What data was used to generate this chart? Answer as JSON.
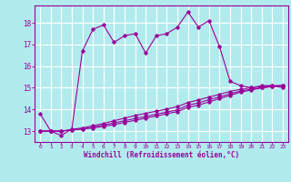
{
  "xlabel": "Windchill (Refroidissement éolien,°C)",
  "ylabel": "",
  "bg_color": "#b2ebee",
  "grid_color": "#ffffff",
  "line_color": "#990099",
  "xlim": [
    -0.5,
    23.5
  ],
  "ylim": [
    12.5,
    18.8
  ],
  "yticks": [
    13,
    14,
    15,
    16,
    17,
    18
  ],
  "xticks": [
    0,
    1,
    2,
    3,
    4,
    5,
    6,
    7,
    8,
    9,
    10,
    11,
    12,
    13,
    14,
    15,
    16,
    17,
    18,
    19,
    20,
    21,
    22,
    23
  ],
  "line1_x": [
    0,
    1,
    2,
    3,
    4,
    5,
    6,
    7,
    8,
    9,
    10,
    11,
    12,
    13,
    14,
    15,
    16,
    17,
    18,
    19,
    20,
    21,
    22,
    23
  ],
  "line1_y": [
    13.8,
    13.0,
    12.8,
    13.1,
    16.7,
    17.7,
    17.9,
    17.1,
    17.4,
    17.5,
    16.6,
    17.4,
    17.5,
    17.8,
    18.5,
    17.8,
    18.1,
    16.9,
    15.3,
    15.1,
    15.0,
    15.1,
    15.1,
    15.0
  ],
  "line2_x": [
    0,
    1,
    2,
    3,
    4,
    5,
    6,
    7,
    8,
    9,
    10,
    11,
    12,
    13,
    14,
    15,
    16,
    17,
    18,
    19,
    20,
    21,
    22,
    23
  ],
  "line2_y": [
    13.0,
    13.0,
    13.0,
    13.05,
    13.1,
    13.15,
    13.22,
    13.3,
    13.4,
    13.5,
    13.6,
    13.7,
    13.8,
    13.9,
    14.1,
    14.2,
    14.35,
    14.5,
    14.65,
    14.8,
    14.9,
    15.0,
    15.05,
    15.1
  ],
  "line3_x": [
    0,
    1,
    2,
    3,
    4,
    5,
    6,
    7,
    8,
    9,
    10,
    11,
    12,
    13,
    14,
    15,
    16,
    17,
    18,
    19,
    20,
    21,
    22,
    23
  ],
  "line3_y": [
    13.0,
    13.0,
    13.0,
    13.05,
    13.1,
    13.18,
    13.28,
    13.38,
    13.48,
    13.58,
    13.68,
    13.78,
    13.88,
    13.98,
    14.2,
    14.3,
    14.45,
    14.58,
    14.72,
    14.85,
    14.93,
    15.0,
    15.07,
    15.1
  ],
  "line4_x": [
    0,
    1,
    2,
    3,
    4,
    5,
    6,
    7,
    8,
    9,
    10,
    11,
    12,
    13,
    14,
    15,
    16,
    17,
    18,
    19,
    20,
    21,
    22,
    23
  ],
  "line4_y": [
    13.0,
    13.0,
    13.0,
    13.08,
    13.15,
    13.25,
    13.35,
    13.48,
    13.6,
    13.72,
    13.82,
    13.92,
    14.02,
    14.13,
    14.32,
    14.44,
    14.57,
    14.7,
    14.83,
    14.93,
    15.0,
    15.05,
    15.1,
    15.1
  ]
}
